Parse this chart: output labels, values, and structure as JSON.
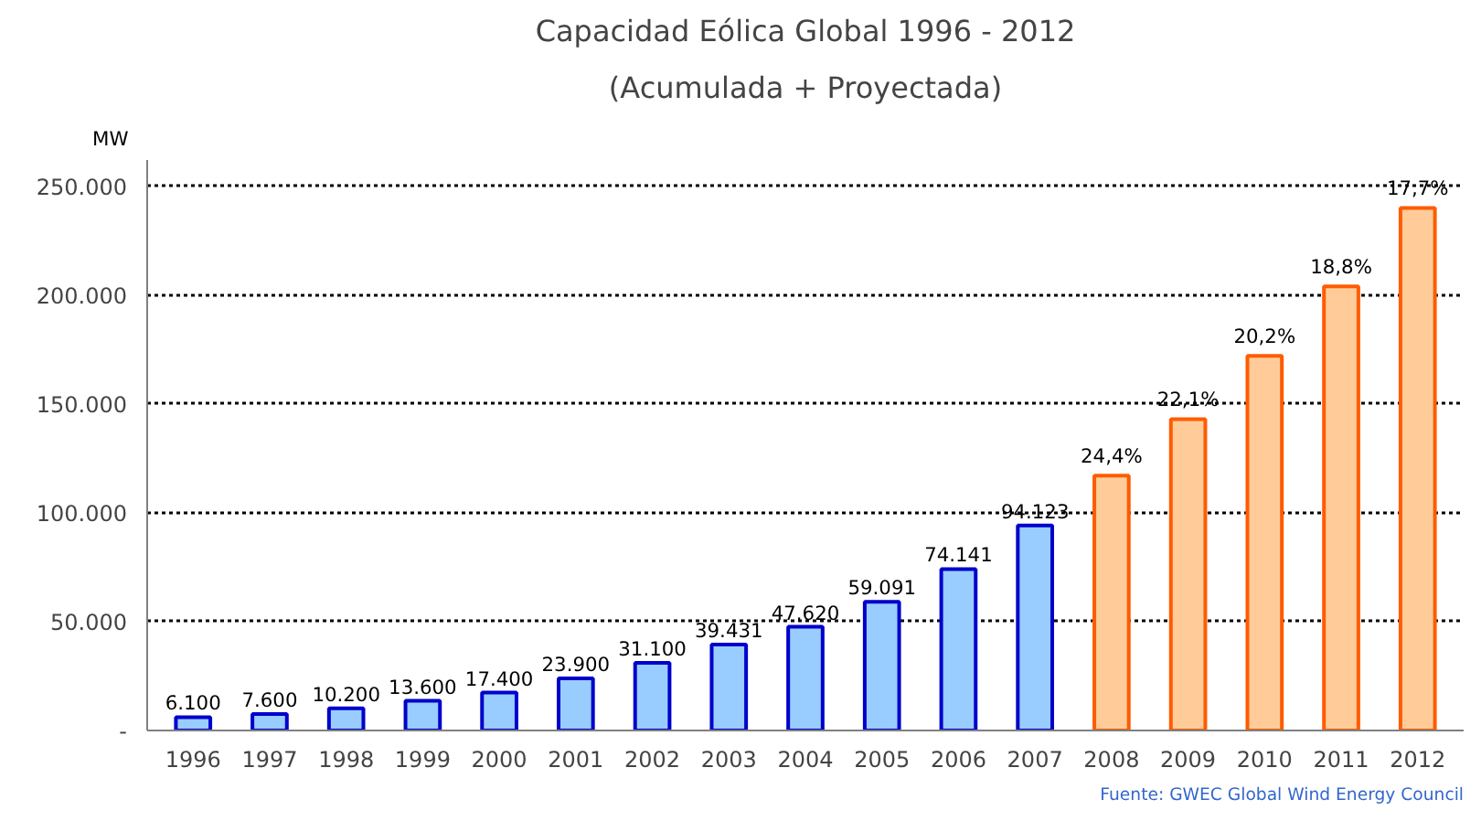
{
  "chart_data": {
    "type": "bar",
    "title": "Capacidad Eólica Global 1996 - 2012",
    "subtitle": "(Acumulada + Proyectada)",
    "ylabel": "MW",
    "categories": [
      "1996",
      "1997",
      "1998",
      "1999",
      "2000",
      "2001",
      "2002",
      "2003",
      "2004",
      "2005",
      "2006",
      "2007",
      "2008",
      "2009",
      "2010",
      "2011",
      "2012"
    ],
    "values": [
      6100,
      7600,
      10200,
      13600,
      17400,
      23900,
      31100,
      39431,
      47620,
      59091,
      74141,
      94123,
      117000,
      143000,
      172000,
      204000,
      240000
    ],
    "value_labels": [
      "6.100",
      "7.600",
      "10.200",
      "13.600",
      "17.400",
      "23.900",
      "31.100",
      "39.431",
      "47.620",
      "59.091",
      "74.141",
      "94.123",
      null,
      null,
      null,
      null,
      null
    ],
    "colors": [
      "#99ccff",
      "#99ccff",
      "#99ccff",
      "#99ccff",
      "#99ccff",
      "#99ccff",
      "#99ccff",
      "#99ccff",
      "#99ccff",
      "#99ccff",
      "#99ccff",
      "#99ccff",
      "#ffcc99",
      "#ffcc99",
      "#ffcc99",
      "#ffcc99",
      "#ffcc99"
    ],
    "ylim": [
      0,
      262000
    ],
    "yticks": [
      {
        "value": 0,
        "label": "-"
      },
      {
        "value": 50000,
        "label": "50.000"
      },
      {
        "value": 100000,
        "label": "100.000"
      },
      {
        "value": 150000,
        "label": "150.000"
      },
      {
        "value": 200000,
        "label": "200.000"
      },
      {
        "value": 250000,
        "label": "250.000"
      }
    ],
    "grid": "y",
    "annotations": [
      {
        "text": "24,4%",
        "x": "2008",
        "y": 117000
      },
      {
        "text": "22,1%",
        "x": "2009",
        "y": 143000
      },
      {
        "text": "20,2%",
        "x": "2010",
        "y": 172000
      },
      {
        "text": "18,8%",
        "x": "2011",
        "y": 204000
      },
      {
        "text": "17,7%",
        "x": "2012",
        "y": 240000
      },
      "Fuente: GWEC Global Wind Energy Council"
    ]
  }
}
